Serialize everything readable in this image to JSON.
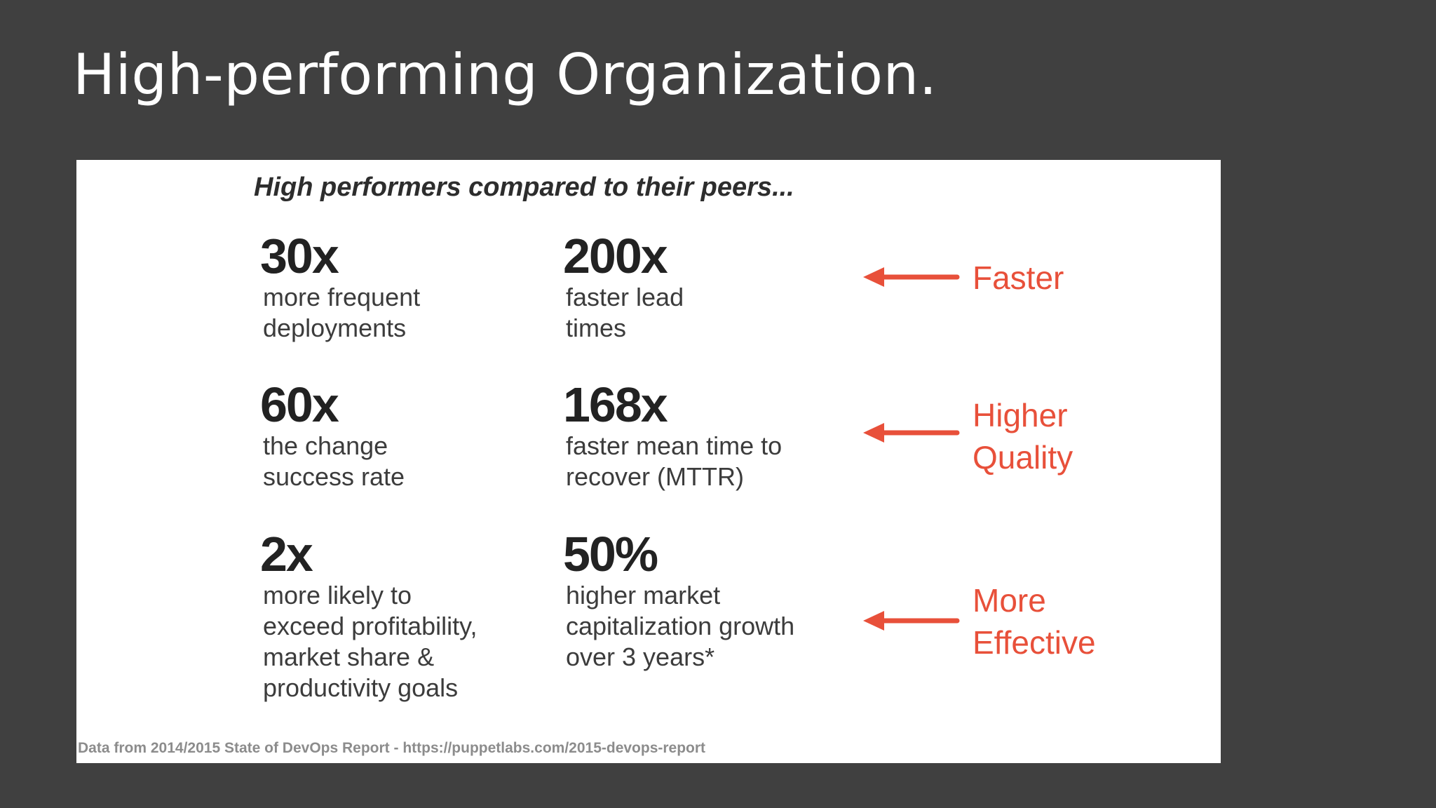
{
  "slide": {
    "title": "High-performing Organization."
  },
  "image": {
    "heading": "High performers compared to their peers...",
    "stats": [
      {
        "value": "30x",
        "description": "more frequent\ndeployments"
      },
      {
        "value": "200x",
        "description": "faster lead\ntimes"
      },
      {
        "value": "60x",
        "description": "the change\nsuccess rate"
      },
      {
        "value": "168x",
        "description": "faster mean time to\nrecover (MTTR)"
      },
      {
        "value": "2x",
        "description": "more likely to\nexceed profitability,\nmarket share &\nproductivity goals"
      },
      {
        "value": "50%",
        "description": "higher market\ncapitalization growth\nover 3 years*"
      }
    ],
    "outcomes": [
      {
        "label": "Faster"
      },
      {
        "label": "Higher\nQuality"
      },
      {
        "label": "More\nEffective"
      }
    ],
    "source": "Data from 2014/2015 State of DevOps Report  - https://puppetlabs.com/2015-devops-report"
  },
  "colors": {
    "background": "#404040",
    "panel": "#ffffff",
    "accent": "#e8503a",
    "text": "#222222"
  },
  "icons": {
    "arrow": "arrow-left-icon"
  }
}
